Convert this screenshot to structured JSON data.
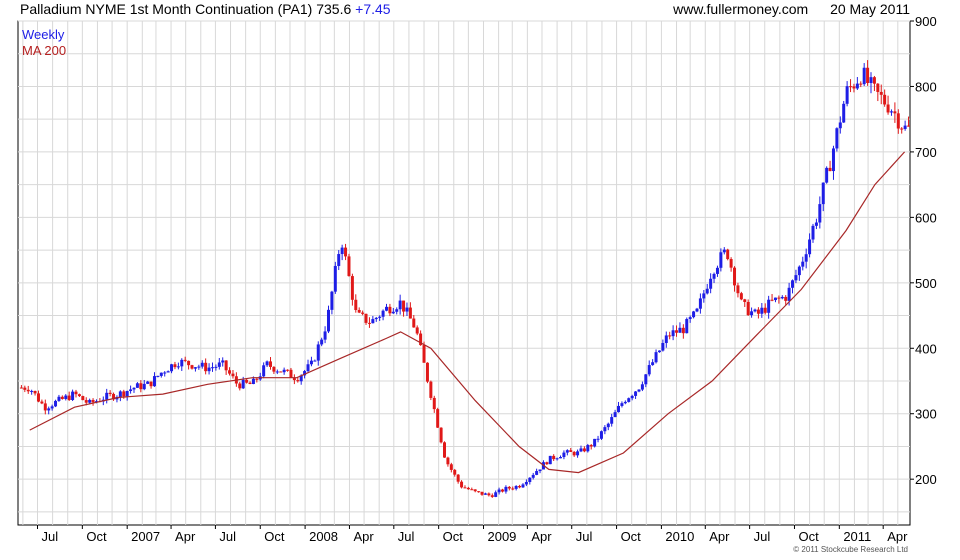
{
  "header": {
    "title": "Palladium NYME 1st Month Continuation (PA1) 735.6",
    "change": "+7.45",
    "website": "www.fullermoney.com",
    "date": "20 May 2011"
  },
  "legend": {
    "weekly": "Weekly",
    "ma": "MA 200"
  },
  "copyright": "© 2011 Stockcube Research Ltd",
  "colors": {
    "up": "#1e1ee6",
    "down": "#e01818",
    "ma": "#a82828",
    "grid": "#d8d8d8"
  },
  "chart_data": {
    "type": "line",
    "ylim": [
      130,
      900
    ],
    "y_ticks": [
      "200",
      "300",
      "400",
      "500",
      "600",
      "700",
      "800",
      "900"
    ],
    "x_ticks": [
      "Jul",
      "Oct",
      "2007",
      "Apr",
      "Jul",
      "Oct",
      "2008",
      "Apr",
      "Jul",
      "Oct",
      "2009",
      "Apr",
      "Jul",
      "Oct",
      "2010",
      "Apr",
      "Jul",
      "Oct",
      "2011",
      "Apr"
    ],
    "grid": true,
    "legend_position": "top-left",
    "series": [
      {
        "name": "Weekly",
        "x": [
          "2006-06",
          "2006-07",
          "2006-08",
          "2006-09",
          "2006-10",
          "2006-11",
          "2006-12",
          "2007-01",
          "2007-02",
          "2007-03",
          "2007-04",
          "2007-05",
          "2007-06",
          "2007-07",
          "2007-08",
          "2007-09",
          "2007-10",
          "2007-11",
          "2007-12",
          "2008-01",
          "2008-02",
          "2008-03",
          "2008-04",
          "2008-05",
          "2008-06",
          "2008-07",
          "2008-08",
          "2008-09",
          "2008-10",
          "2008-11",
          "2008-12",
          "2009-01",
          "2009-02",
          "2009-03",
          "2009-04",
          "2009-05",
          "2009-06",
          "2009-07",
          "2009-08",
          "2009-09",
          "2009-10",
          "2009-11",
          "2009-12",
          "2010-01",
          "2010-02",
          "2010-03",
          "2010-04",
          "2010-05",
          "2010-06",
          "2010-07",
          "2010-08",
          "2010-09",
          "2010-10",
          "2010-11",
          "2010-12",
          "2011-01",
          "2011-02",
          "2011-03",
          "2011-04",
          "2011-05"
        ],
        "values": [
          340,
          310,
          320,
          330,
          315,
          325,
          330,
          340,
          345,
          365,
          380,
          375,
          370,
          375,
          345,
          345,
          375,
          365,
          355,
          375,
          440,
          570,
          450,
          440,
          460,
          470,
          430,
          330,
          230,
          190,
          180,
          175,
          185,
          190,
          210,
          230,
          240,
          240,
          255,
          285,
          320,
          340,
          380,
          420,
          430,
          455,
          520,
          550,
          465,
          450,
          470,
          480,
          530,
          600,
          690,
          790,
          820,
          790,
          770,
          735.6
        ]
      },
      {
        "name": "MA 200",
        "x": [
          "2006-06",
          "2006-09",
          "2006-12",
          "2007-03",
          "2007-06",
          "2007-09",
          "2007-12",
          "2008-03",
          "2008-06",
          "2008-07",
          "2008-09",
          "2008-12",
          "2009-03",
          "2009-05",
          "2009-07",
          "2009-10",
          "2010-01",
          "2010-04",
          "2010-07",
          "2010-10",
          "2011-01",
          "2011-03",
          "2011-05"
        ],
        "values": [
          275,
          310,
          325,
          330,
          345,
          355,
          355,
          385,
          415,
          425,
          400,
          320,
          250,
          215,
          210,
          240,
          300,
          350,
          420,
          490,
          580,
          650,
          700
        ]
      }
    ]
  }
}
